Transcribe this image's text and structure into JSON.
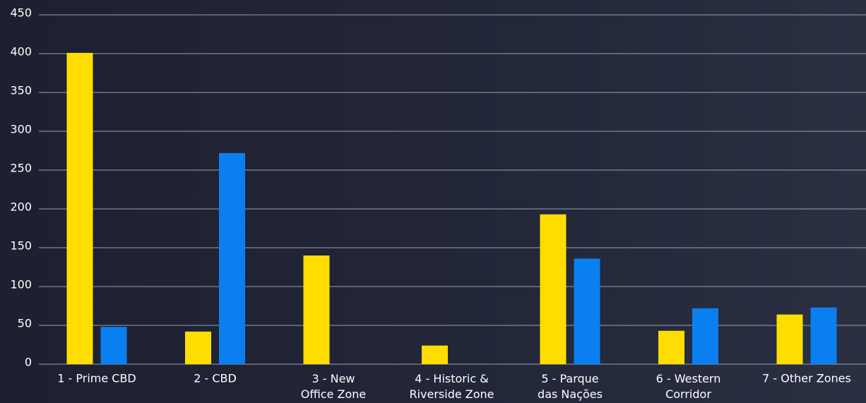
{
  "chart_data": {
    "type": "bar",
    "categories": [
      "1 - Prime CBD",
      "2 - CBD",
      "3 - New\nOffice Zone",
      "4 - Historic &\nRiverside Zone",
      "5 - Parque\ndas Nações",
      "6 - Western\nCorridor",
      "7 - Other Zones"
    ],
    "series": [
      {
        "color": "#ffdd00",
        "values": [
          401,
          42,
          140,
          24,
          193,
          43,
          64
        ]
      },
      {
        "color": "#0a80f0",
        "values": [
          48,
          272,
          null,
          null,
          136,
          72,
          73
        ]
      }
    ],
    "ylim": [
      0,
      450
    ],
    "yticks": [
      0,
      50,
      100,
      150,
      200,
      250,
      300,
      350,
      400,
      450
    ],
    "grid": true
  }
}
